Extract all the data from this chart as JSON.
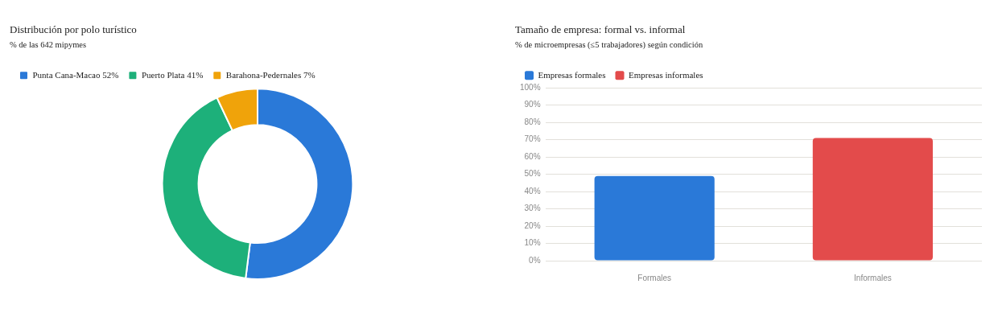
{
  "chart_data": [
    {
      "type": "donut",
      "title": "Distribución por polo turístico",
      "subtitle": "% de las 642 mipymes",
      "categories": [
        "Punta Cana-Macao 52%",
        "Puerto Plata 41%",
        "Barahona-Pedernales 7%"
      ],
      "values": [
        52,
        41,
        7
      ],
      "colors": [
        "#2a79d8",
        "#1db07a",
        "#f0a30a"
      ],
      "legend": "top left"
    },
    {
      "type": "bar",
      "title": "Tamaño de empresa: formal vs. informal",
      "subtitle": "% de microempresas (≤5 trabajadores) según condición",
      "categories": [
        "Formales",
        "Informales"
      ],
      "series": [
        {
          "name": "Empresas formales",
          "color": "#2a79d8",
          "values": [
            49,
            null
          ]
        },
        {
          "name": "Empresas informales",
          "color": "#e34b4b",
          "values": [
            null,
            71
          ]
        }
      ],
      "ylim": [
        0,
        100
      ],
      "yticks": [
        {
          "value": 0,
          "label": "0%"
        },
        {
          "value": 10,
          "label": "10%"
        },
        {
          "value": 20,
          "label": "20%"
        },
        {
          "value": 30,
          "label": "30%"
        },
        {
          "value": 40,
          "label": "40%"
        },
        {
          "value": 50,
          "label": "50%"
        },
        {
          "value": 60,
          "label": "60%"
        },
        {
          "value": 70,
          "label": "70%"
        },
        {
          "value": 80,
          "label": "80%"
        },
        {
          "value": 90,
          "label": "90%"
        },
        {
          "value": 100,
          "label": "100%"
        }
      ],
      "grid": "y",
      "legend": "top left"
    }
  ]
}
